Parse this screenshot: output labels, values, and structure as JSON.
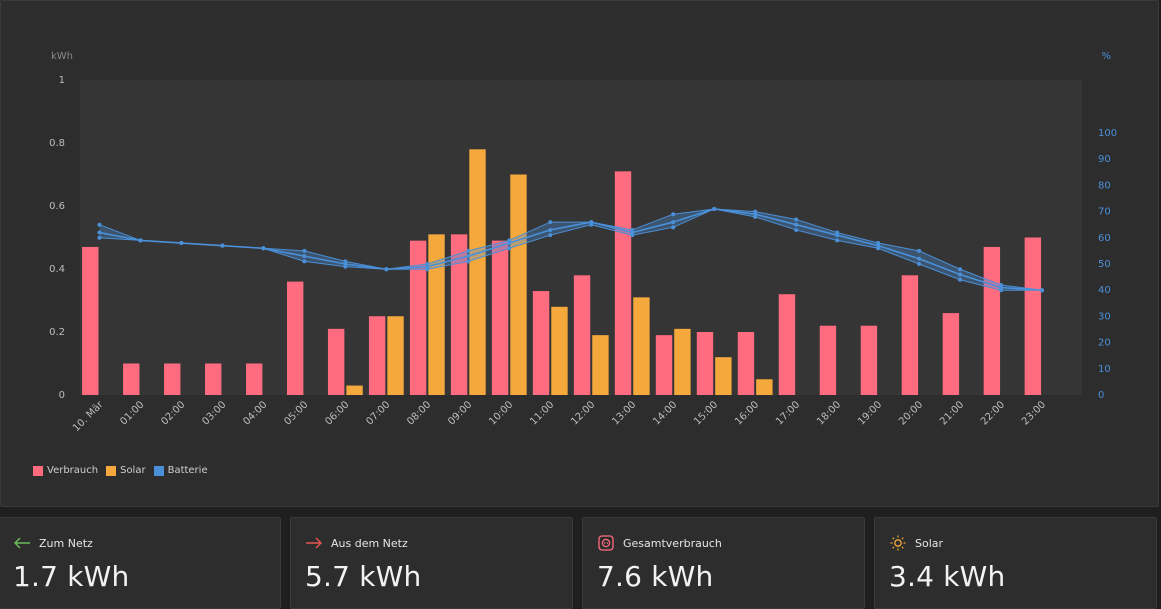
{
  "chart_data": {
    "type": "bar",
    "left_axis_unit": "kWh",
    "right_axis_unit": "%",
    "ylim": [
      0,
      1
    ],
    "y_ticks": [
      "0",
      "0.2",
      "0.4",
      "0.6",
      "0.8",
      "1"
    ],
    "y2lim": [
      0,
      100
    ],
    "y2_ticks": [
      "0",
      "10",
      "20",
      "30",
      "40",
      "50",
      "60",
      "70",
      "80",
      "90",
      "100"
    ],
    "categories": [
      "10. Mär",
      "01:00",
      "02:00",
      "03:00",
      "04:00",
      "05:00",
      "06:00",
      "07:00",
      "08:00",
      "09:00",
      "10:00",
      "11:00",
      "12:00",
      "13:00",
      "14:00",
      "15:00",
      "16:00",
      "17:00",
      "18:00",
      "19:00",
      "20:00",
      "21:00",
      "22:00",
      "23:00"
    ],
    "series": [
      {
        "name": "Verbrauch",
        "color": "#ff6b7f",
        "values": [
          0.47,
          0.1,
          0.1,
          0.1,
          0.1,
          0.36,
          0.21,
          0.25,
          0.49,
          0.51,
          0.49,
          0.33,
          0.38,
          0.71,
          0.19,
          0.2,
          0.2,
          0.32,
          0.22,
          0.22,
          0.38,
          0.26,
          0.47,
          0.5
        ]
      },
      {
        "name": "Solar",
        "color": "#f5a83b",
        "values": [
          0,
          0,
          0,
          0,
          0,
          0,
          0.03,
          0.25,
          0.51,
          0.78,
          0.7,
          0.28,
          0.19,
          0.31,
          0.21,
          0.12,
          0.05,
          0,
          0,
          0,
          0,
          0,
          0,
          0
        ]
      },
      {
        "name": "Batterie",
        "color": "#4a90d9",
        "axis": "right",
        "avg": [
          62,
          59,
          58,
          57,
          56,
          53,
          50,
          48,
          49,
          53,
          58,
          63,
          66,
          62,
          66,
          71,
          69,
          65,
          61,
          57,
          52,
          46,
          41,
          40
        ],
        "min": [
          60,
          59,
          58,
          57,
          56,
          51,
          49,
          48,
          48,
          51,
          56,
          61,
          65,
          61,
          64,
          71,
          68,
          63,
          59,
          56,
          50,
          44,
          40,
          40
        ],
        "max": [
          65,
          59,
          58,
          57,
          56,
          55,
          51,
          48,
          50,
          55,
          59,
          66,
          66,
          63,
          69,
          71,
          70,
          67,
          62,
          58,
          55,
          48,
          42,
          40
        ]
      }
    ]
  },
  "legend": [
    {
      "label": "Verbrauch",
      "color": "#ff6b7f"
    },
    {
      "label": "Solar",
      "color": "#f5a83b"
    },
    {
      "label": "Batterie",
      "color": "#4a90d9"
    }
  ],
  "stats": [
    {
      "label": "Zum Netz",
      "value": "1.7 kWh",
      "icon": "arrow-left-icon",
      "color": "#6bbf59"
    },
    {
      "label": "Aus dem Netz",
      "value": "5.7 kWh",
      "icon": "arrow-right-icon",
      "color": "#e85555"
    },
    {
      "label": "Gesamtverbrauch",
      "value": "7.6 kWh",
      "icon": "socket-icon",
      "color": "#ff6b7f"
    },
    {
      "label": "Solar",
      "value": "3.4 kWh",
      "icon": "sun-icon",
      "color": "#f5a83b"
    }
  ]
}
